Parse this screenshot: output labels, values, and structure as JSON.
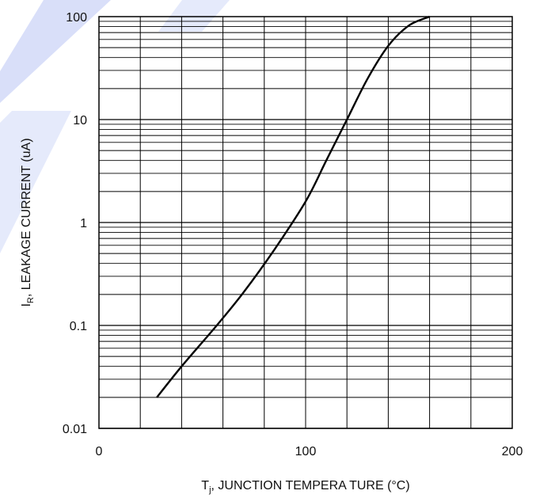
{
  "watermark_color": "#2d4fe0",
  "chart_data": {
    "type": "line",
    "title": "",
    "xlabel": "T_j, JUNCTION   TEMPERA TURE   (°C)",
    "ylabel": "I_R, LEAKAGE   CURRENT   (uA)",
    "xlim": [
      0,
      200
    ],
    "ylim": [
      0.01,
      100
    ],
    "yscale": "log",
    "x_ticks": [
      "0",
      "100",
      "200"
    ],
    "y_ticks": [
      "0.01",
      "0.1",
      "1",
      "10",
      "100"
    ],
    "grid": true,
    "series": [
      {
        "x": [
          28,
          40,
          57,
          70,
          85,
          100,
          110,
          120,
          130,
          140,
          150,
          160
        ],
        "y": [
          0.02,
          0.04,
          0.1,
          0.21,
          0.55,
          1.6,
          4.0,
          10,
          25,
          52,
          82,
          100
        ]
      }
    ]
  }
}
